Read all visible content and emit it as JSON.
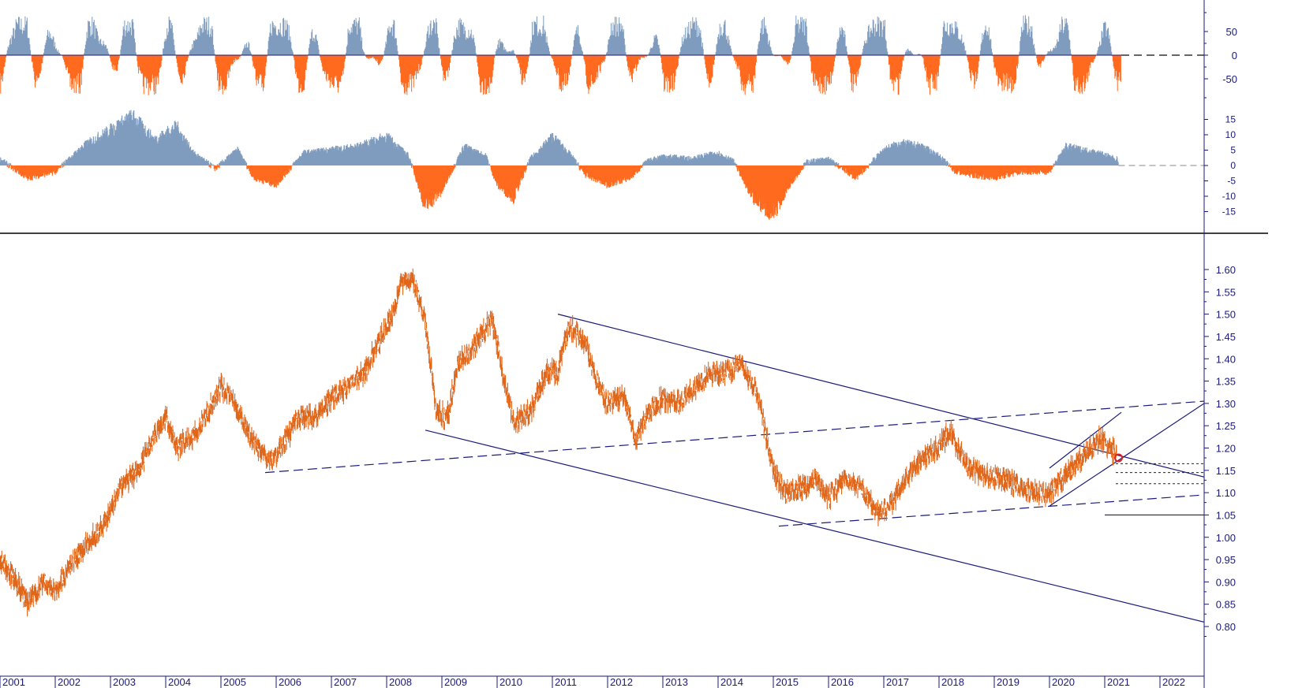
{
  "colors": {
    "price": "#e0661a",
    "positive": "#7f9cbf",
    "negative": "#ff6a1f",
    "trendline": "#1a1a7a",
    "axis": "#1a1a7a",
    "marker": "#e02020"
  },
  "chart_data": [
    {
      "type": "bar",
      "panel": "top-oscillator",
      "title": "",
      "ylabel": "",
      "ylim": [
        -100,
        100
      ],
      "yticks": [
        "50",
        "0",
        "-50"
      ],
      "series_shape": "alternating positive/negative spikes between -90 and 90",
      "grid": false
    },
    {
      "type": "area",
      "panel": "middle-histogram",
      "title": "",
      "ylabel": "",
      "ylim": [
        -20,
        20
      ],
      "yticks": [
        "15",
        "10",
        "5",
        "0",
        "-5",
        "-10",
        "-15"
      ],
      "x": [
        2001.0,
        2001.5,
        2002.0,
        2002.5,
        2003.0,
        2003.4,
        2003.8,
        2004.2,
        2004.5,
        2004.9,
        2005.3,
        2005.6,
        2006.0,
        2006.5,
        2007.0,
        2007.5,
        2008.0,
        2008.4,
        2008.7,
        2009.0,
        2009.4,
        2009.8,
        2010.0,
        2010.3,
        2010.6,
        2011.0,
        2011.3,
        2011.6,
        2012.0,
        2012.4,
        2012.7,
        2013.0,
        2013.5,
        2014.0,
        2014.3,
        2014.6,
        2015.0,
        2015.3,
        2015.6,
        2016.0,
        2016.5,
        2017.0,
        2017.3,
        2017.7,
        2018.0,
        2018.3,
        2018.6,
        2019.0,
        2019.5,
        2020.0,
        2020.3,
        2020.6,
        2020.9,
        2021.2
      ],
      "values": [
        2,
        -4,
        -2,
        6,
        11,
        15,
        8,
        12,
        4,
        -1,
        5,
        -4,
        -6,
        4,
        5,
        6,
        9,
        3,
        -13,
        -8,
        6,
        3,
        -6,
        -10,
        2,
        9,
        4,
        -3,
        -6,
        -4,
        1,
        3,
        2,
        4,
        1,
        -10,
        -15,
        -6,
        1,
        2,
        -4,
        5,
        7,
        6,
        3,
        -2,
        -3,
        -4,
        -2,
        -2,
        6,
        5,
        4,
        2
      ],
      "grid": false
    },
    {
      "type": "line",
      "panel": "price",
      "title": "",
      "xlabel": "",
      "ylabel": "",
      "xlim": [
        2001.0,
        2022.8
      ],
      "ylim": [
        0.8,
        1.62
      ],
      "categories": [
        "2001",
        "2002",
        "2003",
        "2004",
        "2005",
        "2006",
        "2007",
        "2008",
        "2009",
        "2010",
        "2011",
        "2012",
        "2013",
        "2014",
        "2015",
        "2016",
        "2017",
        "2018",
        "2019",
        "2020",
        "2021",
        "2022"
      ],
      "yticks": [
        "1.60",
        "1.55",
        "1.50",
        "1.45",
        "1.40",
        "1.35",
        "1.30",
        "1.25",
        "1.20",
        "1.15",
        "1.10",
        "1.05",
        "1.00",
        "0.95",
        "0.90",
        "0.85",
        "0.80"
      ],
      "x": [
        2001.0,
        2001.3,
        2001.5,
        2001.8,
        2002.0,
        2002.3,
        2002.6,
        2002.9,
        2003.2,
        2003.5,
        2003.8,
        2004.0,
        2004.2,
        2004.4,
        2004.6,
        2004.9,
        2005.0,
        2005.3,
        2005.6,
        2005.9,
        2006.1,
        2006.4,
        2006.7,
        2007.0,
        2007.3,
        2007.6,
        2007.9,
        2008.1,
        2008.3,
        2008.5,
        2008.7,
        2008.9,
        2009.1,
        2009.3,
        2009.6,
        2009.9,
        2010.1,
        2010.3,
        2010.6,
        2010.9,
        2011.1,
        2011.3,
        2011.6,
        2011.8,
        2012.0,
        2012.3,
        2012.5,
        2012.8,
        2013.0,
        2013.3,
        2013.6,
        2013.9,
        2014.2,
        2014.4,
        2014.7,
        2015.0,
        2015.2,
        2015.5,
        2015.8,
        2016.0,
        2016.3,
        2016.6,
        2016.9,
        2017.1,
        2017.4,
        2017.7,
        2018.0,
        2018.2,
        2018.5,
        2018.8,
        2019.1,
        2019.4,
        2019.7,
        2020.0,
        2020.2,
        2020.4,
        2020.6,
        2020.9,
        2021.1,
        2021.2
      ],
      "y": [
        0.95,
        0.9,
        0.85,
        0.9,
        0.88,
        0.94,
        0.99,
        1.03,
        1.12,
        1.15,
        1.23,
        1.27,
        1.2,
        1.22,
        1.24,
        1.31,
        1.34,
        1.29,
        1.21,
        1.17,
        1.2,
        1.27,
        1.27,
        1.31,
        1.34,
        1.37,
        1.45,
        1.5,
        1.58,
        1.57,
        1.48,
        1.28,
        1.27,
        1.39,
        1.43,
        1.49,
        1.37,
        1.26,
        1.28,
        1.37,
        1.37,
        1.47,
        1.44,
        1.35,
        1.3,
        1.32,
        1.22,
        1.29,
        1.31,
        1.3,
        1.34,
        1.37,
        1.37,
        1.39,
        1.33,
        1.15,
        1.1,
        1.11,
        1.13,
        1.09,
        1.13,
        1.11,
        1.05,
        1.07,
        1.13,
        1.18,
        1.2,
        1.24,
        1.16,
        1.14,
        1.13,
        1.12,
        1.1,
        1.1,
        1.13,
        1.15,
        1.18,
        1.22,
        1.2,
        1.19
      ],
      "trendlines": [
        {
          "style": "solid",
          "x": [
            2011.1,
            2022.8
          ],
          "y": [
            1.5,
            1.135
          ]
        },
        {
          "style": "solid",
          "x": [
            2008.7,
            2022.8
          ],
          "y": [
            1.24,
            0.81
          ]
        },
        {
          "style": "dashed",
          "x": [
            2005.8,
            2022.8
          ],
          "y": [
            1.145,
            1.305
          ]
        },
        {
          "style": "dashed",
          "x": [
            2015.1,
            2022.8
          ],
          "y": [
            1.025,
            1.095
          ]
        },
        {
          "style": "solid",
          "x": [
            2020.0,
            2022.8
          ],
          "y": [
            1.07,
            1.3
          ]
        },
        {
          "style": "solid",
          "x": [
            2020.0,
            2021.3
          ],
          "y": [
            1.155,
            1.28
          ]
        },
        {
          "style": "solid",
          "x": [
            2021.0,
            2022.8
          ],
          "y": [
            1.05,
            1.05
          ]
        }
      ],
      "support_levels": [
        1.165,
        1.145,
        1.12
      ],
      "marker": {
        "x": 2021.25,
        "y": 1.178
      },
      "grid": false
    }
  ]
}
